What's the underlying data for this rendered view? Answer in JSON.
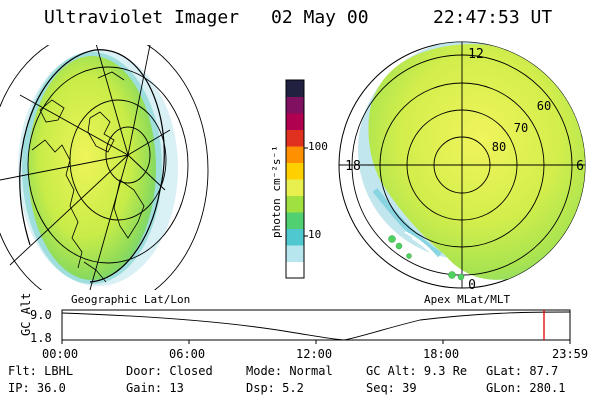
{
  "header": {
    "title": "Ultraviolet Imager",
    "date": "02 May 00",
    "time": "22:47:53 UT"
  },
  "colorbar": {
    "unit_label": "photon cm⁻²s⁻¹",
    "ticks": [
      "100",
      "10"
    ],
    "scale": "log",
    "colors": [
      "#ffffff",
      "#b8e6ee",
      "#50c8d0",
      "#50d070",
      "#a0e040",
      "#e8f050",
      "#ffd000",
      "#ff9000",
      "#e03020",
      "#b00050",
      "#801060",
      "#202040"
    ]
  },
  "geo_panel": {
    "caption": "Geographic Lat/Lon",
    "projection": "orthographic-earth-view"
  },
  "mag_panel": {
    "caption": "Apex MLat/MLT",
    "mlt_labels": {
      "top": "12",
      "left": "18",
      "right": "6",
      "bottom": "0"
    },
    "mlat_labels": [
      "60",
      "70",
      "80"
    ]
  },
  "altitude_plot": {
    "ylabel": "GC Alt",
    "y_ticks": [
      "9.0",
      "1.8"
    ],
    "x_ticks": [
      "00:00",
      "06:00",
      "12:00",
      "18:00",
      "23:59"
    ],
    "current_time_marker_color": "#e00000"
  },
  "info": {
    "rows": [
      [
        {
          "label": "Flt:",
          "value": "LBHL"
        },
        {
          "label": "Door:",
          "value": "Closed"
        },
        {
          "label": "Mode:",
          "value": "Normal"
        },
        {
          "label": "GC Alt:",
          "value": "9.3 Re"
        },
        {
          "label": "GLat:",
          "value": "87.7"
        }
      ],
      [
        {
          "label": "IP:",
          "value": "36.0"
        },
        {
          "label": "Gain:",
          "value": "13"
        },
        {
          "label": "Dsp:",
          "value": "5.2"
        },
        {
          "label": "Seq:",
          "value": "39"
        },
        {
          "label": "GLon:",
          "value": "280.1"
        }
      ]
    ]
  }
}
